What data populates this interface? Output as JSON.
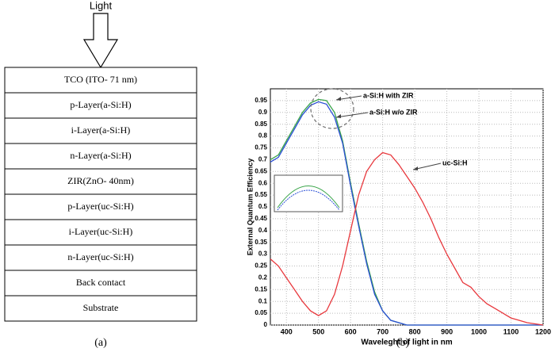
{
  "diagram": {
    "light": "Light",
    "layers": [
      "TCO (ITO- 71 nm)",
      "p-Layer(a-Si:H)",
      "i-Layer(a-Si:H)",
      "n-Layer(a-Si:H)",
      "ZIR(ZnO- 40nm)",
      "p-Layer(uc-Si:H)",
      "i-Layer(uc-Si:H)",
      "n-Layer(uc-Si:H)",
      "Back contact",
      "Substrate"
    ]
  },
  "captions": [
    "(a)",
    "(b)"
  ],
  "chart_data": {
    "type": "line",
    "xlabel": "Waveleght of light in nm",
    "ylabel": "External Quantum Efficiency",
    "x": [
      350,
      375,
      400,
      425,
      450,
      475,
      500,
      525,
      550,
      575,
      600,
      625,
      650,
      675,
      700,
      725,
      750,
      775,
      800,
      825,
      850,
      875,
      900,
      925,
      950,
      975,
      1000,
      1025,
      1050,
      1075,
      1100,
      1125,
      1150,
      1175,
      1200
    ],
    "series": [
      {
        "name": "a-Si:H with ZIR",
        "color": "#3aa54a",
        "values": [
          0.7,
          0.72,
          0.78,
          0.84,
          0.9,
          0.94,
          0.955,
          0.95,
          0.9,
          0.78,
          0.6,
          0.43,
          0.27,
          0.14,
          0.06,
          0.02,
          0.01,
          0,
          0,
          0,
          0,
          0,
          0,
          0,
          0,
          0,
          0,
          0,
          0,
          0,
          0,
          0,
          0,
          0,
          0
        ]
      },
      {
        "name": "a-Si:H w/o ZIR",
        "color": "#2b4fd6",
        "values": [
          0.69,
          0.71,
          0.77,
          0.83,
          0.89,
          0.93,
          0.945,
          0.935,
          0.88,
          0.77,
          0.59,
          0.42,
          0.26,
          0.13,
          0.06,
          0.02,
          0.01,
          0,
          0,
          0,
          0,
          0,
          0,
          0,
          0,
          0,
          0,
          0,
          0,
          0,
          0,
          0,
          0,
          0,
          0
        ]
      },
      {
        "name": "uc-Si:H",
        "color": "#e8383d",
        "values": [
          0.28,
          0.25,
          0.2,
          0.15,
          0.1,
          0.06,
          0.04,
          0.06,
          0.13,
          0.25,
          0.4,
          0.55,
          0.65,
          0.7,
          0.73,
          0.72,
          0.68,
          0.63,
          0.58,
          0.52,
          0.45,
          0.37,
          0.3,
          0.24,
          0.18,
          0.16,
          0.12,
          0.09,
          0.07,
          0.05,
          0.03,
          0.02,
          0.01,
          0.005,
          0
        ]
      }
    ],
    "xlim": [
      350,
      1200
    ],
    "xticks": [
      400,
      500,
      600,
      700,
      800,
      900,
      1000,
      1100,
      1200
    ],
    "ylim": [
      0,
      1
    ],
    "yticks": [
      0,
      0.05,
      0.1,
      0.15,
      0.2,
      0.25,
      0.3,
      0.35,
      0.4,
      0.45,
      0.5,
      0.55,
      0.6,
      0.65,
      0.7,
      0.75,
      0.8,
      0.85,
      0.9,
      0.95
    ],
    "grid": true
  }
}
